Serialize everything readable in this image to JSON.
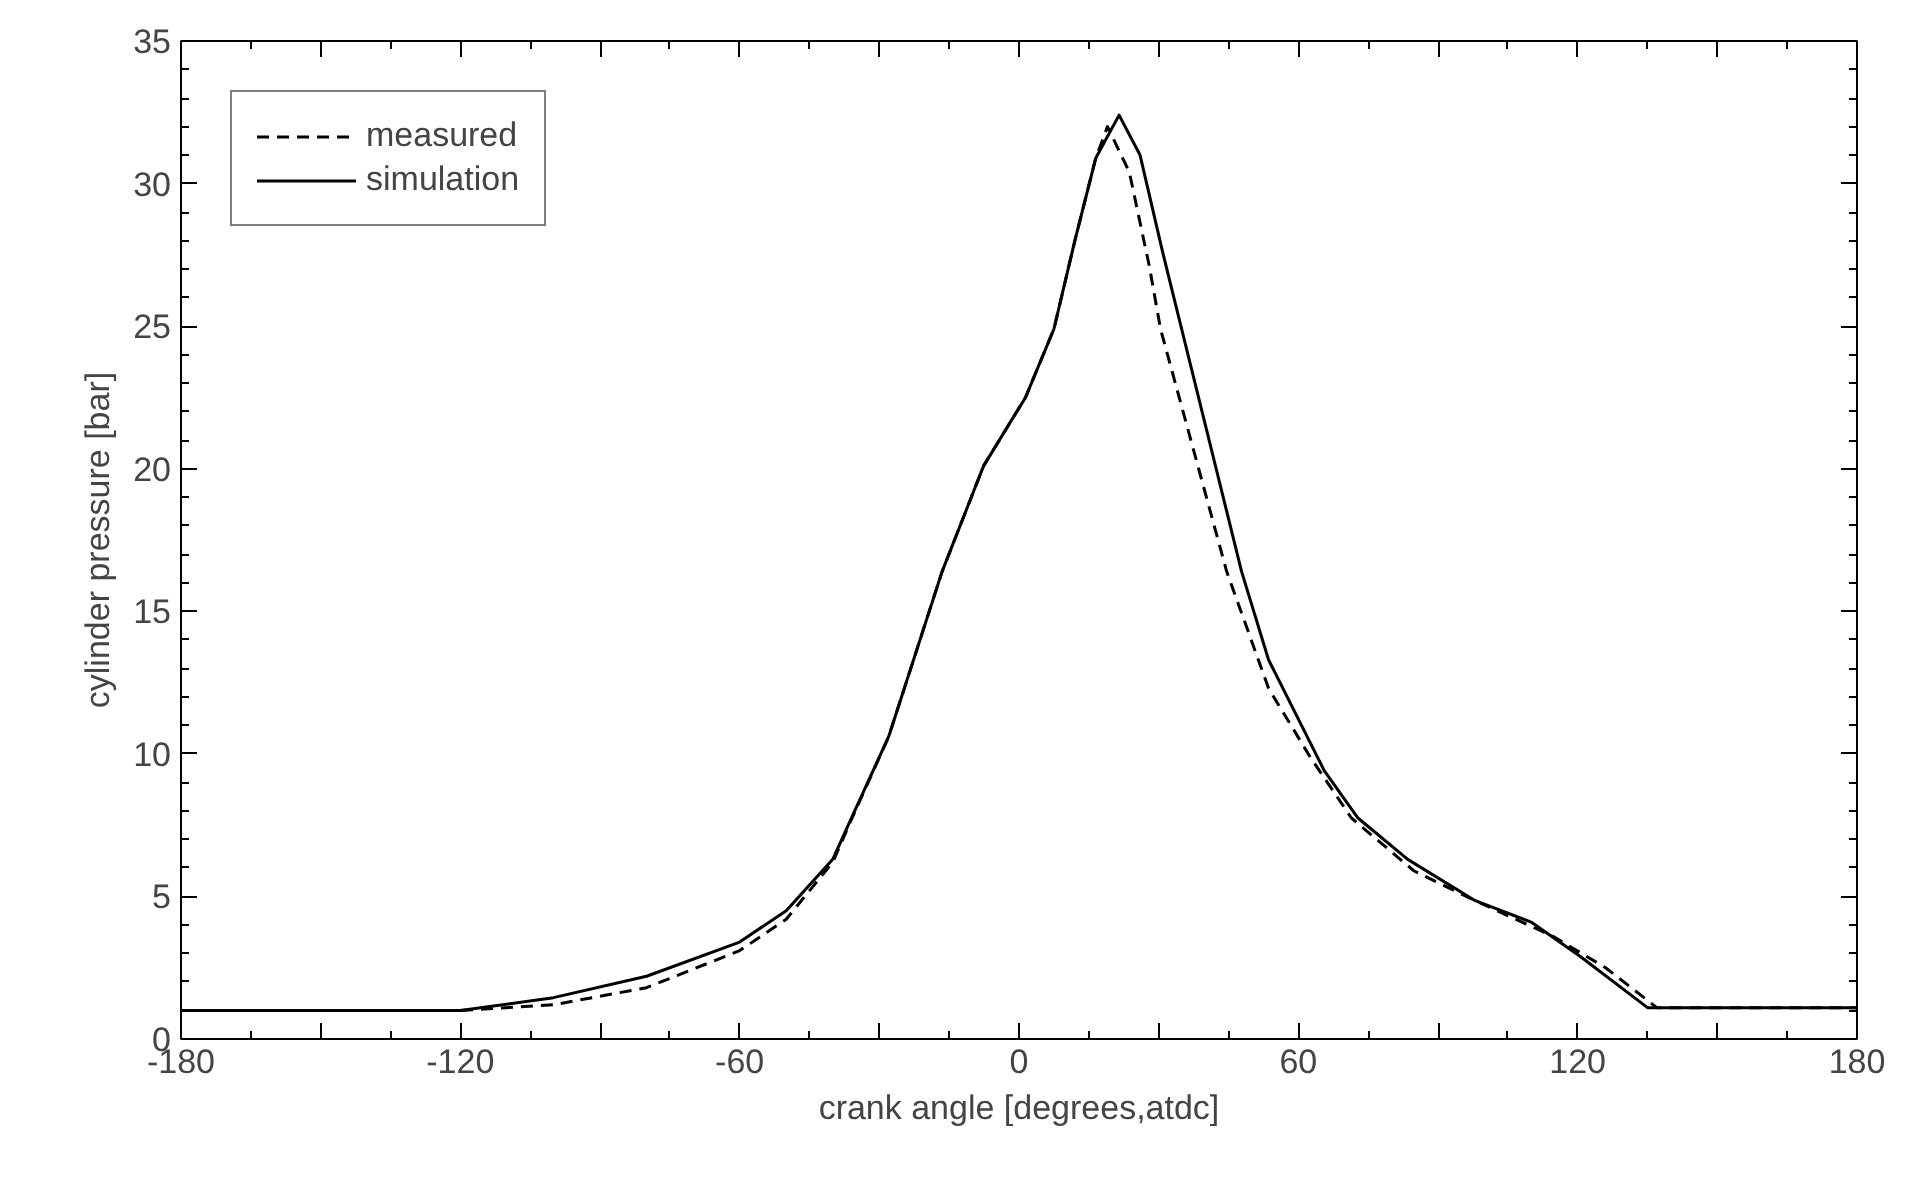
{
  "chart_data": {
    "type": "line",
    "xlabel": "crank angle [degrees,atdc]",
    "ylabel": "cylinder pressure [bar]",
    "xlim": [
      -180,
      180
    ],
    "ylim": [
      0,
      35
    ],
    "xticks": [
      -180,
      {
        "value": -150,
        "label": null
      },
      -120,
      {
        "value": -90,
        "label": null
      },
      -60,
      {
        "value": -30,
        "label": null
      },
      0,
      {
        "value": 30,
        "label": null
      },
      60,
      {
        "value": 90,
        "label": null
      },
      120,
      {
        "value": 150,
        "label": null
      },
      180
    ],
    "yticks": [
      0,
      5,
      10,
      15,
      20,
      25,
      30,
      35
    ],
    "grid": false,
    "legend": "top left",
    "series": [
      {
        "name": "measured",
        "color": "#000000",
        "line_style": "dashed",
        "x": [
          -180,
          -120,
          -100,
          -80,
          -60,
          -50,
          -40,
          -36,
          -28,
          -16.5,
          -7.6,
          1.4,
          7.5,
          12,
          16.5,
          19,
          23.7,
          28,
          30.4,
          44.6,
          53.6,
          62.5,
          71.4,
          84.8,
          98,
          114.7,
          126,
          137,
          180
        ],
        "values": [
          1.0,
          1.0,
          1.2,
          1.8,
          3.1,
          4.2,
          6.2,
          7.7,
          10.6,
          16.4,
          20.1,
          22.5,
          24.9,
          28,
          30.9,
          32.0,
          30.4,
          27.1,
          24.9,
          16.4,
          12.3,
          9.9,
          7.75,
          5.9,
          4.85,
          3.6,
          2.5,
          1.1,
          1.1
        ]
      },
      {
        "name": "simulation",
        "color": "#000000",
        "line_style": "solid",
        "x": [
          -180,
          -120,
          -100,
          -80,
          -60,
          -50,
          -40,
          -36,
          -28,
          -16.5,
          -7.6,
          1.4,
          7.5,
          12,
          16.5,
          21.5,
          26,
          31,
          47.8,
          53.6,
          65.6,
          72.8,
          83.5,
          98,
          110,
          120.5,
          135,
          180
        ],
        "values": [
          1.0,
          1.0,
          1.45,
          2.2,
          3.4,
          4.5,
          6.3,
          7.75,
          10.6,
          16.4,
          20.1,
          22.5,
          24.9,
          28,
          30.9,
          32.4,
          31.0,
          27.5,
          16.4,
          13.3,
          9.4,
          7.75,
          6.3,
          4.85,
          4.1,
          2.9,
          1.1,
          1.1
        ]
      }
    ]
  }
}
